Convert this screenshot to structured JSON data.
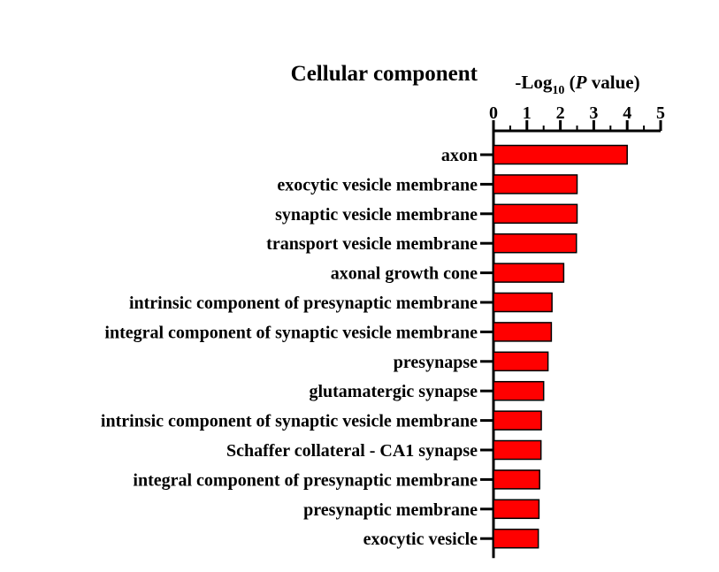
{
  "chart_data": {
    "type": "bar",
    "orientation": "horizontal",
    "title": "Cellular component",
    "xlabel": {
      "prefix": "-Log",
      "subscript": "10",
      "open": " (",
      "italic": "P",
      "suffix": " value)"
    },
    "xlim": [
      0,
      5
    ],
    "xticks": [
      "0",
      "1",
      "2",
      "3",
      "4",
      "5"
    ],
    "axis_position": "top",
    "grid": false,
    "bar_color": "#ff0000",
    "bar_edge_color": "#000000",
    "categories": [
      "axon",
      "exocytic vesicle membrane",
      "synaptic vesicle membrane",
      "transport vesicle membrane",
      "axonal growth cone",
      "intrinsic component of presynaptic membrane",
      "integral component of synaptic vesicle membrane",
      "presynapse",
      "glutamatergic synapse",
      "intrinsic component of synaptic vesicle membrane",
      "Schaffer collateral - CA1 synapse",
      "integral component of presynaptic membrane",
      "presynaptic membrane",
      "exocytic vesicle"
    ],
    "values": [
      4.0,
      2.5,
      2.5,
      2.48,
      2.1,
      1.75,
      1.73,
      1.63,
      1.5,
      1.43,
      1.42,
      1.38,
      1.36,
      1.34
    ]
  }
}
